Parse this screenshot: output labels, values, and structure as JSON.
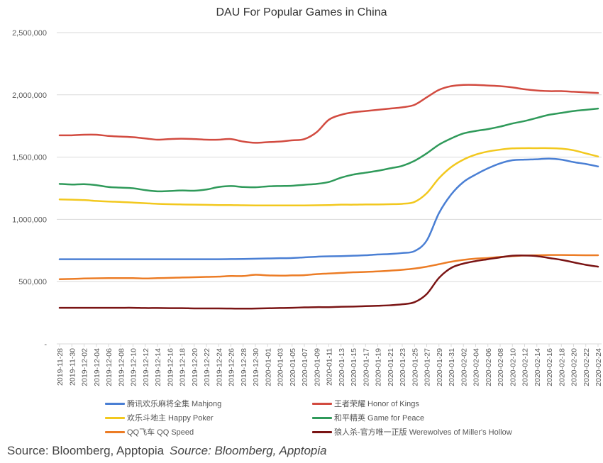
{
  "chart_data": {
    "type": "line",
    "title": "DAU For Popular Games in China",
    "xlabel": "",
    "ylabel": "",
    "ylim": [
      0,
      2500000
    ],
    "yticks": [
      0,
      500000,
      1000000,
      1500000,
      2000000,
      2500000
    ],
    "ytick_labels": [
      "-",
      "500,000",
      "1,000,000",
      "1,500,000",
      "2,000,000",
      "2,500,000"
    ],
    "grid": true,
    "legend_position": "bottom",
    "x": [
      "2019-11-28",
      "2019-11-30",
      "2019-12-02",
      "2019-12-04",
      "2019-12-06",
      "2019-12-08",
      "2019-12-10",
      "2019-12-12",
      "2019-12-14",
      "2019-12-16",
      "2019-12-18",
      "2019-12-20",
      "2019-12-22",
      "2019-12-24",
      "2019-12-26",
      "2019-12-28",
      "2019-12-30",
      "2020-01-01",
      "2020-01-03",
      "2020-01-05",
      "2020-01-07",
      "2020-01-09",
      "2020-01-11",
      "2020-01-13",
      "2020-01-15",
      "2020-01-17",
      "2020-01-19",
      "2020-01-21",
      "2020-01-23",
      "2020-01-25",
      "2020-01-27",
      "2020-01-29",
      "2020-01-31",
      "2020-02-02",
      "2020-02-04",
      "2020-02-06",
      "2020-02-08",
      "2020-02-10",
      "2020-02-12",
      "2020-02-14",
      "2020-02-16",
      "2020-02-18",
      "2020-02-20",
      "2020-02-22",
      "2020-02-24"
    ],
    "series": [
      {
        "name": "腾讯欢乐麻将全集 Mahjong",
        "color": "#4a7fd4",
        "values": [
          680000,
          680000,
          680000,
          680000,
          680000,
          680000,
          680000,
          680000,
          680000,
          680000,
          680000,
          680000,
          680000,
          680000,
          681000,
          682000,
          684000,
          686000,
          688000,
          690000,
          695000,
          700000,
          703000,
          705000,
          708000,
          712000,
          718000,
          722000,
          730000,
          745000,
          830000,
          1050000,
          1200000,
          1300000,
          1360000,
          1410000,
          1450000,
          1475000,
          1480000,
          1483000,
          1488000,
          1480000,
          1460000,
          1445000,
          1425000
        ]
      },
      {
        "name": "王者荣耀 Honor of Kings",
        "color": "#d24b40",
        "values": [
          1675000,
          1675000,
          1680000,
          1680000,
          1670000,
          1665000,
          1660000,
          1650000,
          1640000,
          1645000,
          1648000,
          1645000,
          1640000,
          1640000,
          1645000,
          1625000,
          1615000,
          1620000,
          1625000,
          1635000,
          1645000,
          1700000,
          1800000,
          1840000,
          1860000,
          1870000,
          1880000,
          1890000,
          1900000,
          1920000,
          1980000,
          2040000,
          2070000,
          2080000,
          2080000,
          2075000,
          2070000,
          2060000,
          2045000,
          2035000,
          2030000,
          2030000,
          2025000,
          2020000,
          2015000
        ]
      },
      {
        "name": "欢乐斗地主 Happy Poker",
        "color": "#f2c81e",
        "values": [
          1160000,
          1158000,
          1155000,
          1148000,
          1143000,
          1140000,
          1135000,
          1130000,
          1125000,
          1122000,
          1120000,
          1118000,
          1117000,
          1115000,
          1115000,
          1113000,
          1112000,
          1112000,
          1112000,
          1112000,
          1112000,
          1113000,
          1115000,
          1118000,
          1118000,
          1120000,
          1120000,
          1122000,
          1125000,
          1140000,
          1210000,
          1330000,
          1420000,
          1480000,
          1520000,
          1545000,
          1560000,
          1570000,
          1572000,
          1572000,
          1572000,
          1568000,
          1555000,
          1530000,
          1505000
        ]
      },
      {
        "name": "和平精英 Game for Peace",
        "color": "#2f9a5a",
        "values": [
          1285000,
          1280000,
          1283000,
          1275000,
          1260000,
          1255000,
          1250000,
          1235000,
          1225000,
          1228000,
          1232000,
          1230000,
          1240000,
          1260000,
          1268000,
          1260000,
          1258000,
          1265000,
          1268000,
          1270000,
          1278000,
          1285000,
          1300000,
          1335000,
          1360000,
          1375000,
          1390000,
          1410000,
          1430000,
          1470000,
          1530000,
          1600000,
          1650000,
          1690000,
          1710000,
          1725000,
          1745000,
          1770000,
          1790000,
          1815000,
          1840000,
          1855000,
          1870000,
          1880000,
          1890000
        ]
      },
      {
        "name": "QQ飞车 QQ Speed",
        "color": "#ec7c25",
        "values": [
          520000,
          522000,
          525000,
          527000,
          528000,
          528000,
          528000,
          525000,
          528000,
          530000,
          533000,
          535000,
          538000,
          540000,
          545000,
          545000,
          555000,
          550000,
          548000,
          550000,
          552000,
          560000,
          565000,
          570000,
          575000,
          578000,
          582000,
          588000,
          595000,
          605000,
          620000,
          640000,
          660000,
          675000,
          685000,
          690000,
          698000,
          705000,
          710000,
          712000,
          714000,
          714000,
          713000,
          712000,
          712000
        ]
      },
      {
        "name": "狼人杀-官方唯一正版 Werewolves of Miller's Hollow",
        "color": "#7a1414",
        "values": [
          290000,
          290000,
          290000,
          290000,
          290000,
          290000,
          290000,
          288000,
          288000,
          287000,
          287000,
          285000,
          285000,
          285000,
          284000,
          283000,
          284000,
          286000,
          288000,
          290000,
          293000,
          295000,
          295000,
          298000,
          300000,
          303000,
          306000,
          310000,
          318000,
          335000,
          400000,
          530000,
          610000,
          645000,
          665000,
          680000,
          695000,
          708000,
          710000,
          705000,
          690000,
          675000,
          655000,
          635000,
          620000
        ]
      }
    ]
  },
  "source": {
    "plain": "Source: Bloomberg, Apptopia",
    "italic": "Source: Bloomberg, Apptopia"
  }
}
